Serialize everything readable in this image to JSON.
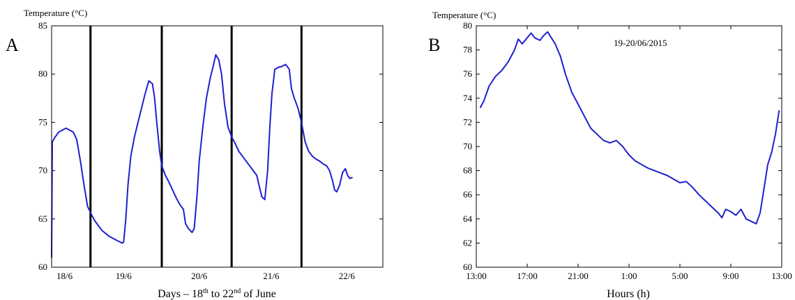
{
  "chart_data": [
    {
      "type": "line",
      "panel": "A",
      "ylabel": "Temperature (°C)",
      "xlabel": {
        "prefix": "Days – 18",
        "sup1": "th",
        "mid": " to 22",
        "sup2": "nd",
        "suffix": " of June"
      },
      "ylim": [
        60,
        85
      ],
      "yticks": [
        60,
        65,
        70,
        75,
        80,
        85
      ],
      "xlim": [
        0,
        4.6
      ],
      "xticks": [
        {
          "x": 0.18,
          "label": "18/6"
        },
        {
          "x": 1.0,
          "label": "19/6"
        },
        {
          "x": 2.05,
          "label": "20/6"
        },
        {
          "x": 3.05,
          "label": "21/6"
        },
        {
          "x": 4.1,
          "label": "22/6"
        }
      ],
      "day_dividers": [
        0.54,
        1.53,
        2.5,
        3.47
      ],
      "grid": false,
      "series": [
        {
          "color": "#1f1fd0",
          "points": [
            [
              0.0,
              61.0
            ],
            [
              0.01,
              73.0
            ],
            [
              0.05,
              73.5
            ],
            [
              0.1,
              74.0
            ],
            [
              0.15,
              74.2
            ],
            [
              0.2,
              74.4
            ],
            [
              0.25,
              74.2
            ],
            [
              0.3,
              74.0
            ],
            [
              0.35,
              73.2
            ],
            [
              0.4,
              71.0
            ],
            [
              0.45,
              68.5
            ],
            [
              0.5,
              66.3
            ],
            [
              0.55,
              65.5
            ],
            [
              0.6,
              64.8
            ],
            [
              0.7,
              63.8
            ],
            [
              0.8,
              63.2
            ],
            [
              0.9,
              62.8
            ],
            [
              0.98,
              62.5
            ],
            [
              1.0,
              62.6
            ],
            [
              1.03,
              65.0
            ],
            [
              1.06,
              68.5
            ],
            [
              1.1,
              71.5
            ],
            [
              1.15,
              73.5
            ],
            [
              1.2,
              75.0
            ],
            [
              1.25,
              76.5
            ],
            [
              1.3,
              78.0
            ],
            [
              1.35,
              79.3
            ],
            [
              1.4,
              79.0
            ],
            [
              1.43,
              77.5
            ],
            [
              1.46,
              75.0
            ],
            [
              1.5,
              72.0
            ],
            [
              1.53,
              70.5
            ],
            [
              1.58,
              69.5
            ],
            [
              1.63,
              68.8
            ],
            [
              1.68,
              68.0
            ],
            [
              1.73,
              67.2
            ],
            [
              1.78,
              66.5
            ],
            [
              1.83,
              66.0
            ],
            [
              1.86,
              64.5
            ],
            [
              1.9,
              64.0
            ],
            [
              1.95,
              63.6
            ],
            [
              1.98,
              64.0
            ],
            [
              2.02,
              67.5
            ],
            [
              2.05,
              71.0
            ],
            [
              2.1,
              74.5
            ],
            [
              2.15,
              77.5
            ],
            [
              2.2,
              79.5
            ],
            [
              2.25,
              81.0
            ],
            [
              2.28,
              82.0
            ],
            [
              2.32,
              81.5
            ],
            [
              2.36,
              80.0
            ],
            [
              2.4,
              77.0
            ],
            [
              2.45,
              74.5
            ],
            [
              2.5,
              73.5
            ],
            [
              2.55,
              72.8
            ],
            [
              2.6,
              72.0
            ],
            [
              2.65,
              71.5
            ],
            [
              2.7,
              71.0
            ],
            [
              2.75,
              70.5
            ],
            [
              2.8,
              70.0
            ],
            [
              2.85,
              69.5
            ],
            [
              2.88,
              68.5
            ],
            [
              2.92,
              67.3
            ],
            [
              2.96,
              67.0
            ],
            [
              3.0,
              70.0
            ],
            [
              3.03,
              74.5
            ],
            [
              3.06,
              78.0
            ],
            [
              3.1,
              80.5
            ],
            [
              3.15,
              80.7
            ],
            [
              3.2,
              80.8
            ],
            [
              3.25,
              81.0
            ],
            [
              3.3,
              80.5
            ],
            [
              3.33,
              78.5
            ],
            [
              3.37,
              77.5
            ],
            [
              3.42,
              76.5
            ],
            [
              3.47,
              75.0
            ],
            [
              3.52,
              73.0
            ],
            [
              3.57,
              72.0
            ],
            [
              3.62,
              71.5
            ],
            [
              3.67,
              71.2
            ],
            [
              3.72,
              71.0
            ],
            [
              3.77,
              70.7
            ],
            [
              3.82,
              70.5
            ],
            [
              3.86,
              70.0
            ],
            [
              3.9,
              69.0
            ],
            [
              3.93,
              68.0
            ],
            [
              3.96,
              67.8
            ],
            [
              4.0,
              68.5
            ],
            [
              4.04,
              69.8
            ],
            [
              4.08,
              70.2
            ],
            [
              4.11,
              69.5
            ],
            [
              4.14,
              69.2
            ],
            [
              4.18,
              69.3
            ]
          ]
        }
      ]
    },
    {
      "type": "line",
      "panel": "B",
      "ylabel": "Temperature (°C)",
      "xlabel": "Hours (h)",
      "annotation": "19-20/06/2015",
      "ylim": [
        60,
        80
      ],
      "yticks": [
        60,
        62,
        64,
        66,
        68,
        70,
        72,
        74,
        76,
        78,
        80
      ],
      "xlim": [
        0,
        24
      ],
      "xticks": [
        {
          "x": 0,
          "label": "13:00"
        },
        {
          "x": 4,
          "label": "17:00"
        },
        {
          "x": 8,
          "label": "21:00"
        },
        {
          "x": 12,
          "label": "1:00"
        },
        {
          "x": 16,
          "label": "5:00"
        },
        {
          "x": 20,
          "label": "9:00"
        },
        {
          "x": 24,
          "label": "13:00"
        }
      ],
      "grid": false,
      "series": [
        {
          "color": "#1f1fd0",
          "points": [
            [
              0.3,
              73.2
            ],
            [
              0.6,
              73.8
            ],
            [
              1.0,
              75.0
            ],
            [
              1.5,
              75.8
            ],
            [
              2.0,
              76.3
            ],
            [
              2.5,
              77.0
            ],
            [
              3.0,
              78.0
            ],
            [
              3.3,
              78.9
            ],
            [
              3.6,
              78.5
            ],
            [
              4.0,
              79.0
            ],
            [
              4.3,
              79.4
            ],
            [
              4.6,
              79.0
            ],
            [
              5.0,
              78.8
            ],
            [
              5.3,
              79.2
            ],
            [
              5.6,
              79.5
            ],
            [
              5.9,
              79.0
            ],
            [
              6.2,
              78.5
            ],
            [
              6.6,
              77.5
            ],
            [
              7.0,
              76.0
            ],
            [
              7.5,
              74.5
            ],
            [
              8.0,
              73.5
            ],
            [
              8.5,
              72.5
            ],
            [
              9.0,
              71.5
            ],
            [
              9.5,
              71.0
            ],
            [
              10.0,
              70.5
            ],
            [
              10.5,
              70.3
            ],
            [
              11.0,
              70.5
            ],
            [
              11.5,
              70.0
            ],
            [
              12.0,
              69.3
            ],
            [
              12.5,
              68.8
            ],
            [
              13.0,
              68.5
            ],
            [
              13.5,
              68.2
            ],
            [
              14.0,
              68.0
            ],
            [
              14.5,
              67.8
            ],
            [
              15.0,
              67.6
            ],
            [
              15.5,
              67.3
            ],
            [
              16.0,
              67.0
            ],
            [
              16.5,
              67.1
            ],
            [
              17.0,
              66.6
            ],
            [
              17.5,
              66.0
            ],
            [
              18.0,
              65.5
            ],
            [
              18.5,
              65.0
            ],
            [
              19.0,
              64.5
            ],
            [
              19.3,
              64.1
            ],
            [
              19.6,
              64.8
            ],
            [
              20.0,
              64.6
            ],
            [
              20.4,
              64.3
            ],
            [
              20.8,
              64.8
            ],
            [
              21.2,
              64.0
            ],
            [
              21.6,
              63.8
            ],
            [
              22.0,
              63.6
            ],
            [
              22.3,
              64.5
            ],
            [
              22.6,
              66.5
            ],
            [
              22.9,
              68.5
            ],
            [
              23.2,
              69.5
            ],
            [
              23.5,
              71.0
            ],
            [
              23.8,
              73.0
            ]
          ]
        }
      ]
    }
  ]
}
